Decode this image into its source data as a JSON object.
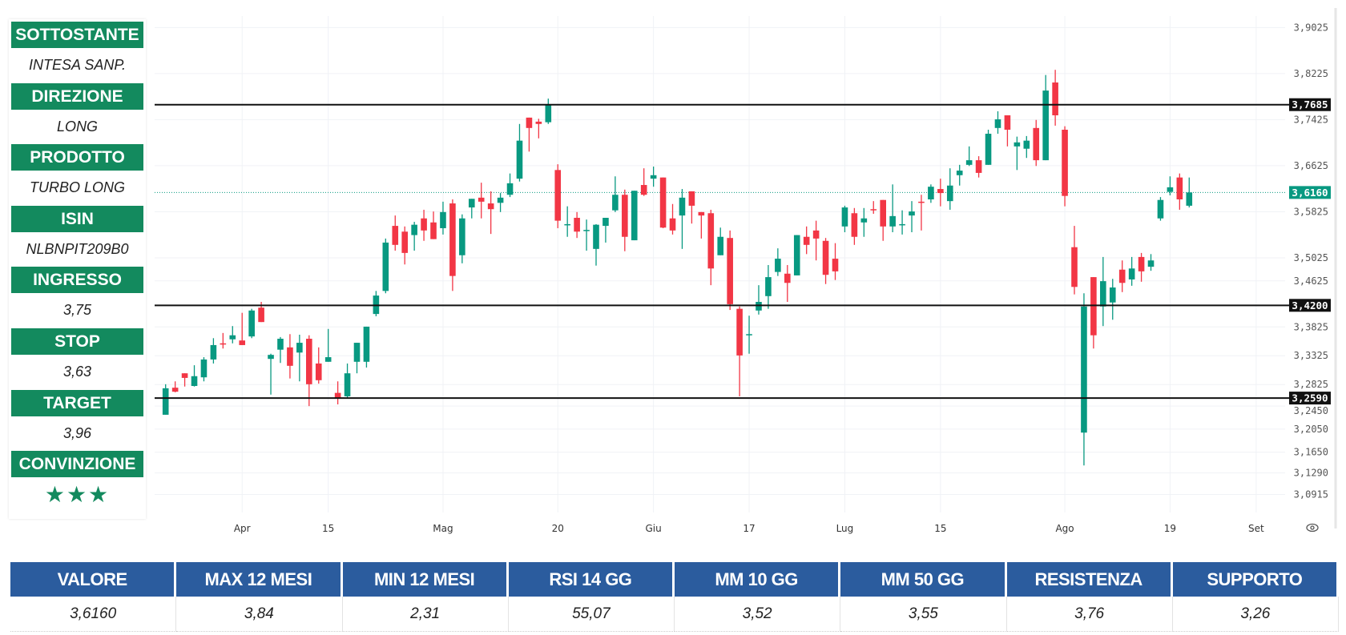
{
  "panel": {
    "items": [
      {
        "label": "SOTTOSTANTE",
        "value": "INTESA SANP."
      },
      {
        "label": "DIREZIONE",
        "value": "LONG"
      },
      {
        "label": "PRODOTTO",
        "value": "TURBO LONG"
      },
      {
        "label": "ISIN",
        "value": "NLBNPIT209B0"
      },
      {
        "label": "INGRESSO",
        "value": "3,75"
      },
      {
        "label": "STOP",
        "value": "3,63"
      },
      {
        "label": "TARGET",
        "value": "3,96"
      },
      {
        "label": "CONVINZIONE",
        "value": "★★★"
      }
    ],
    "conviction_stars": 3
  },
  "colors": {
    "panel_green": "#138a5e",
    "table_blue": "#2b5c9e",
    "up": "#089981",
    "down": "#f23645"
  },
  "chart_data": {
    "type": "candlestick",
    "title": "",
    "y_ticks": [
      "3,9025",
      "3,8225",
      "3,7425",
      "3,6625",
      "3,5825",
      "3,5025",
      "3,4625",
      "3,3825",
      "3,3325",
      "3,2825",
      "3,2450",
      "3,2050",
      "3,1650",
      "3,1290",
      "3,0915"
    ],
    "y_tick_values": [
      3.9025,
      3.8225,
      3.7425,
      3.6625,
      3.5825,
      3.5025,
      3.4625,
      3.3825,
      3.3325,
      3.2825,
      3.245,
      3.205,
      3.165,
      3.129,
      3.0915
    ],
    "x_ticks": [
      {
        "label": "Apr",
        "index": 8
      },
      {
        "label": "15",
        "index": 17
      },
      {
        "label": "Mag",
        "index": 29
      },
      {
        "label": "20",
        "index": 41
      },
      {
        "label": "Giu",
        "index": 51
      },
      {
        "label": "17",
        "index": 61
      },
      {
        "label": "Lug",
        "index": 71
      },
      {
        "label": "15",
        "index": 81
      },
      {
        "label": "Ago",
        "index": 94
      },
      {
        "label": "19",
        "index": 105
      },
      {
        "label": "Set",
        "index": 114
      }
    ],
    "horizontal_lines": [
      {
        "value": 3.7685,
        "label": "3,7685"
      },
      {
        "value": 3.42,
        "label": "3,4200"
      },
      {
        "value": 3.259,
        "label": "3,2590"
      }
    ],
    "last_price": {
      "value": 3.616,
      "label": "3,6160"
    },
    "ohlc": [
      [
        3.23,
        3.283,
        3.23,
        3.276
      ],
      [
        3.277,
        3.288,
        3.269,
        3.27
      ],
      [
        3.302,
        3.302,
        3.279,
        3.294
      ],
      [
        3.28,
        3.316,
        3.279,
        3.297
      ],
      [
        3.295,
        3.33,
        3.288,
        3.326
      ],
      [
        3.326,
        3.363,
        3.319,
        3.351
      ],
      [
        3.354,
        3.372,
        3.345,
        3.352
      ],
      [
        3.361,
        3.384,
        3.354,
        3.368
      ],
      [
        3.359,
        3.407,
        3.351,
        3.351
      ],
      [
        3.366,
        3.414,
        3.363,
        3.411
      ],
      [
        3.416,
        3.426,
        3.391,
        3.391
      ],
      [
        3.327,
        3.336,
        3.265,
        3.334
      ],
      [
        3.343,
        3.365,
        3.32,
        3.362
      ],
      [
        3.347,
        3.37,
        3.293,
        3.315
      ],
      [
        3.338,
        3.369,
        3.288,
        3.355
      ],
      [
        3.362,
        3.368,
        3.245,
        3.283
      ],
      [
        3.319,
        3.347,
        3.284,
        3.29
      ],
      [
        3.322,
        3.379,
        3.322,
        3.33
      ],
      [
        3.268,
        3.288,
        3.248,
        3.258
      ],
      [
        3.262,
        3.319,
        3.258,
        3.302
      ],
      [
        3.322,
        3.355,
        3.302,
        3.355
      ],
      [
        3.322,
        3.383,
        3.312,
        3.383
      ],
      [
        3.405,
        3.445,
        3.401,
        3.437
      ],
      [
        3.445,
        3.536,
        3.441,
        3.529
      ],
      [
        3.558,
        3.576,
        3.515,
        3.525
      ],
      [
        3.548,
        3.557,
        3.491,
        3.511
      ],
      [
        3.542,
        3.565,
        3.515,
        3.56
      ],
      [
        3.571,
        3.586,
        3.532,
        3.55
      ],
      [
        3.564,
        3.583,
        3.535,
        3.535
      ],
      [
        3.554,
        3.6,
        3.543,
        3.582
      ],
      [
        3.597,
        3.604,
        3.445,
        3.471
      ],
      [
        3.507,
        3.578,
        3.493,
        3.571
      ],
      [
        3.59,
        3.605,
        3.571,
        3.605
      ],
      [
        3.607,
        3.633,
        3.571,
        3.6
      ],
      [
        3.597,
        3.618,
        3.544,
        3.587
      ],
      [
        3.598,
        3.615,
        3.582,
        3.607
      ],
      [
        3.612,
        3.649,
        3.608,
        3.632
      ],
      [
        3.64,
        3.735,
        3.635,
        3.706
      ],
      [
        3.746,
        3.746,
        3.687,
        3.728
      ],
      [
        3.739,
        3.744,
        3.71,
        3.735
      ],
      [
        3.738,
        3.779,
        3.735,
        3.768
      ],
      [
        3.655,
        3.665,
        3.554,
        3.567
      ],
      [
        3.56,
        3.592,
        3.539,
        3.561
      ],
      [
        3.572,
        3.582,
        3.537,
        3.548
      ],
      [
        3.55,
        3.569,
        3.515,
        3.551
      ],
      [
        3.518,
        3.561,
        3.489,
        3.56
      ],
      [
        3.558,
        3.572,
        3.529,
        3.572
      ],
      [
        3.585,
        3.644,
        3.582,
        3.612
      ],
      [
        3.612,
        3.621,
        3.514,
        3.539
      ],
      [
        3.533,
        3.619,
        3.533,
        3.619
      ],
      [
        3.629,
        3.658,
        3.61,
        3.612
      ],
      [
        3.64,
        3.661,
        3.626,
        3.646
      ],
      [
        3.642,
        3.642,
        3.554,
        3.555
      ],
      [
        3.571,
        3.596,
        3.543,
        3.55
      ],
      [
        3.576,
        3.622,
        3.518,
        3.607
      ],
      [
        3.618,
        3.618,
        3.562,
        3.593
      ],
      [
        3.582,
        3.582,
        3.536,
        3.576
      ],
      [
        3.58,
        3.586,
        3.455,
        3.484
      ],
      [
        3.507,
        3.555,
        3.507,
        3.539
      ],
      [
        3.537,
        3.55,
        3.412,
        3.422
      ],
      [
        3.414,
        3.418,
        3.262,
        3.333
      ],
      [
        3.369,
        3.402,
        3.336,
        3.37
      ],
      [
        3.411,
        3.455,
        3.404,
        3.426
      ],
      [
        3.436,
        3.49,
        3.414,
        3.469
      ],
      [
        3.478,
        3.519,
        3.471,
        3.501
      ],
      [
        3.475,
        3.49,
        3.426,
        3.459
      ],
      [
        3.472,
        3.542,
        3.472,
        3.542
      ],
      [
        3.539,
        3.557,
        3.509,
        3.525
      ],
      [
        3.55,
        3.567,
        3.498,
        3.536
      ],
      [
        3.532,
        3.537,
        3.457,
        3.473
      ],
      [
        3.501,
        3.528,
        3.464,
        3.479
      ],
      [
        3.557,
        3.593,
        3.547,
        3.59
      ],
      [
        3.58,
        3.589,
        3.525,
        3.539
      ],
      [
        3.564,
        3.589,
        3.539,
        3.571
      ],
      [
        3.587,
        3.601,
        3.579,
        3.586
      ],
      [
        3.603,
        3.603,
        3.532,
        3.557
      ],
      [
        3.557,
        3.63,
        3.547,
        3.575
      ],
      [
        3.56,
        3.585,
        3.543,
        3.561
      ],
      [
        3.576,
        3.601,
        3.547,
        3.583
      ],
      [
        3.6,
        3.612,
        3.55,
        3.598
      ],
      [
        3.604,
        3.63,
        3.598,
        3.626
      ],
      [
        3.622,
        3.64,
        3.592,
        3.615
      ],
      [
        3.601,
        3.658,
        3.586,
        3.628
      ],
      [
        3.646,
        3.664,
        3.628,
        3.654
      ],
      [
        3.664,
        3.696,
        3.662,
        3.672
      ],
      [
        3.672,
        3.679,
        3.642,
        3.65
      ],
      [
        3.664,
        3.725,
        3.664,
        3.718
      ],
      [
        3.728,
        3.757,
        3.718,
        3.743
      ],
      [
        3.75,
        3.75,
        3.696,
        3.725
      ],
      [
        3.696,
        3.713,
        3.655,
        3.703
      ],
      [
        3.692,
        3.714,
        3.676,
        3.706
      ],
      [
        3.728,
        3.742,
        3.662,
        3.672
      ],
      [
        3.672,
        3.82,
        3.672,
        3.793
      ],
      [
        3.807,
        3.829,
        3.732,
        3.75
      ],
      [
        3.725,
        3.731,
        3.592,
        3.61
      ],
      [
        3.521,
        3.558,
        3.439,
        3.452
      ],
      [
        3.199,
        3.441,
        3.142,
        3.418
      ],
      [
        3.469,
        3.469,
        3.345,
        3.368
      ],
      [
        3.418,
        3.504,
        3.384,
        3.462
      ],
      [
        3.425,
        3.466,
        3.395,
        3.451
      ],
      [
        3.482,
        3.498,
        3.443,
        3.459
      ],
      [
        3.465,
        3.504,
        3.454,
        3.484
      ],
      [
        3.504,
        3.511,
        3.461,
        3.479
      ],
      [
        3.487,
        3.509,
        3.48,
        3.498
      ],
      [
        3.571,
        3.608,
        3.567,
        3.603
      ],
      [
        3.617,
        3.644,
        3.611,
        3.625
      ],
      [
        3.642,
        3.649,
        3.586,
        3.604
      ],
      [
        3.593,
        3.642,
        3.59,
        3.616
      ]
    ]
  },
  "table": {
    "headers": [
      "VALORE",
      "MAX 12 MESI",
      "MIN 12 MESI",
      "RSI 14 GG",
      "MM 10 GG",
      "MM 50 GG",
      "RESISTENZA",
      "SUPPORTO"
    ],
    "values": [
      "3,6160",
      "3,84",
      "2,31",
      "55,07",
      "3,52",
      "3,55",
      "3,76",
      "3,26"
    ]
  }
}
